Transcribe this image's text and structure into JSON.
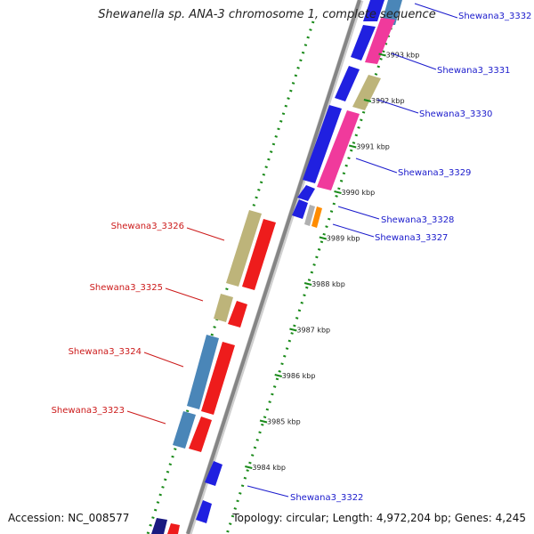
{
  "title": "Shewanella sp. ANA-3 chromosome 1, complete sequence",
  "accession": "Accession: NC_008577",
  "topology": "Topology: circular; Length: 4,972,204 bp; Genes: 4,245",
  "colors": {
    "forward_label": "#1a1acc",
    "reverse_label": "#cc1a1a",
    "backbone": "#888888",
    "gc_dots": "#1a8a1a"
  },
  "kbp_ticks": [
    "3984 kbp",
    "3985 kbp",
    "3986 kbp",
    "3987 kbp",
    "3988 kbp",
    "3989 kbp",
    "3990 kbp",
    "3991 kbp",
    "3992 kbp",
    "3993 kbp"
  ],
  "forward_gene_labels": [
    "Shewana3_3332",
    "Shewana3_3331",
    "Shewana3_3330",
    "Shewana3_3329",
    "Shewana3_3328",
    "Shewana3_3327",
    "Shewana3_3322"
  ],
  "reverse_gene_labels": [
    "Shewana3_3326",
    "Shewana3_3325",
    "Shewana3_3324",
    "Shewana3_3323"
  ]
}
